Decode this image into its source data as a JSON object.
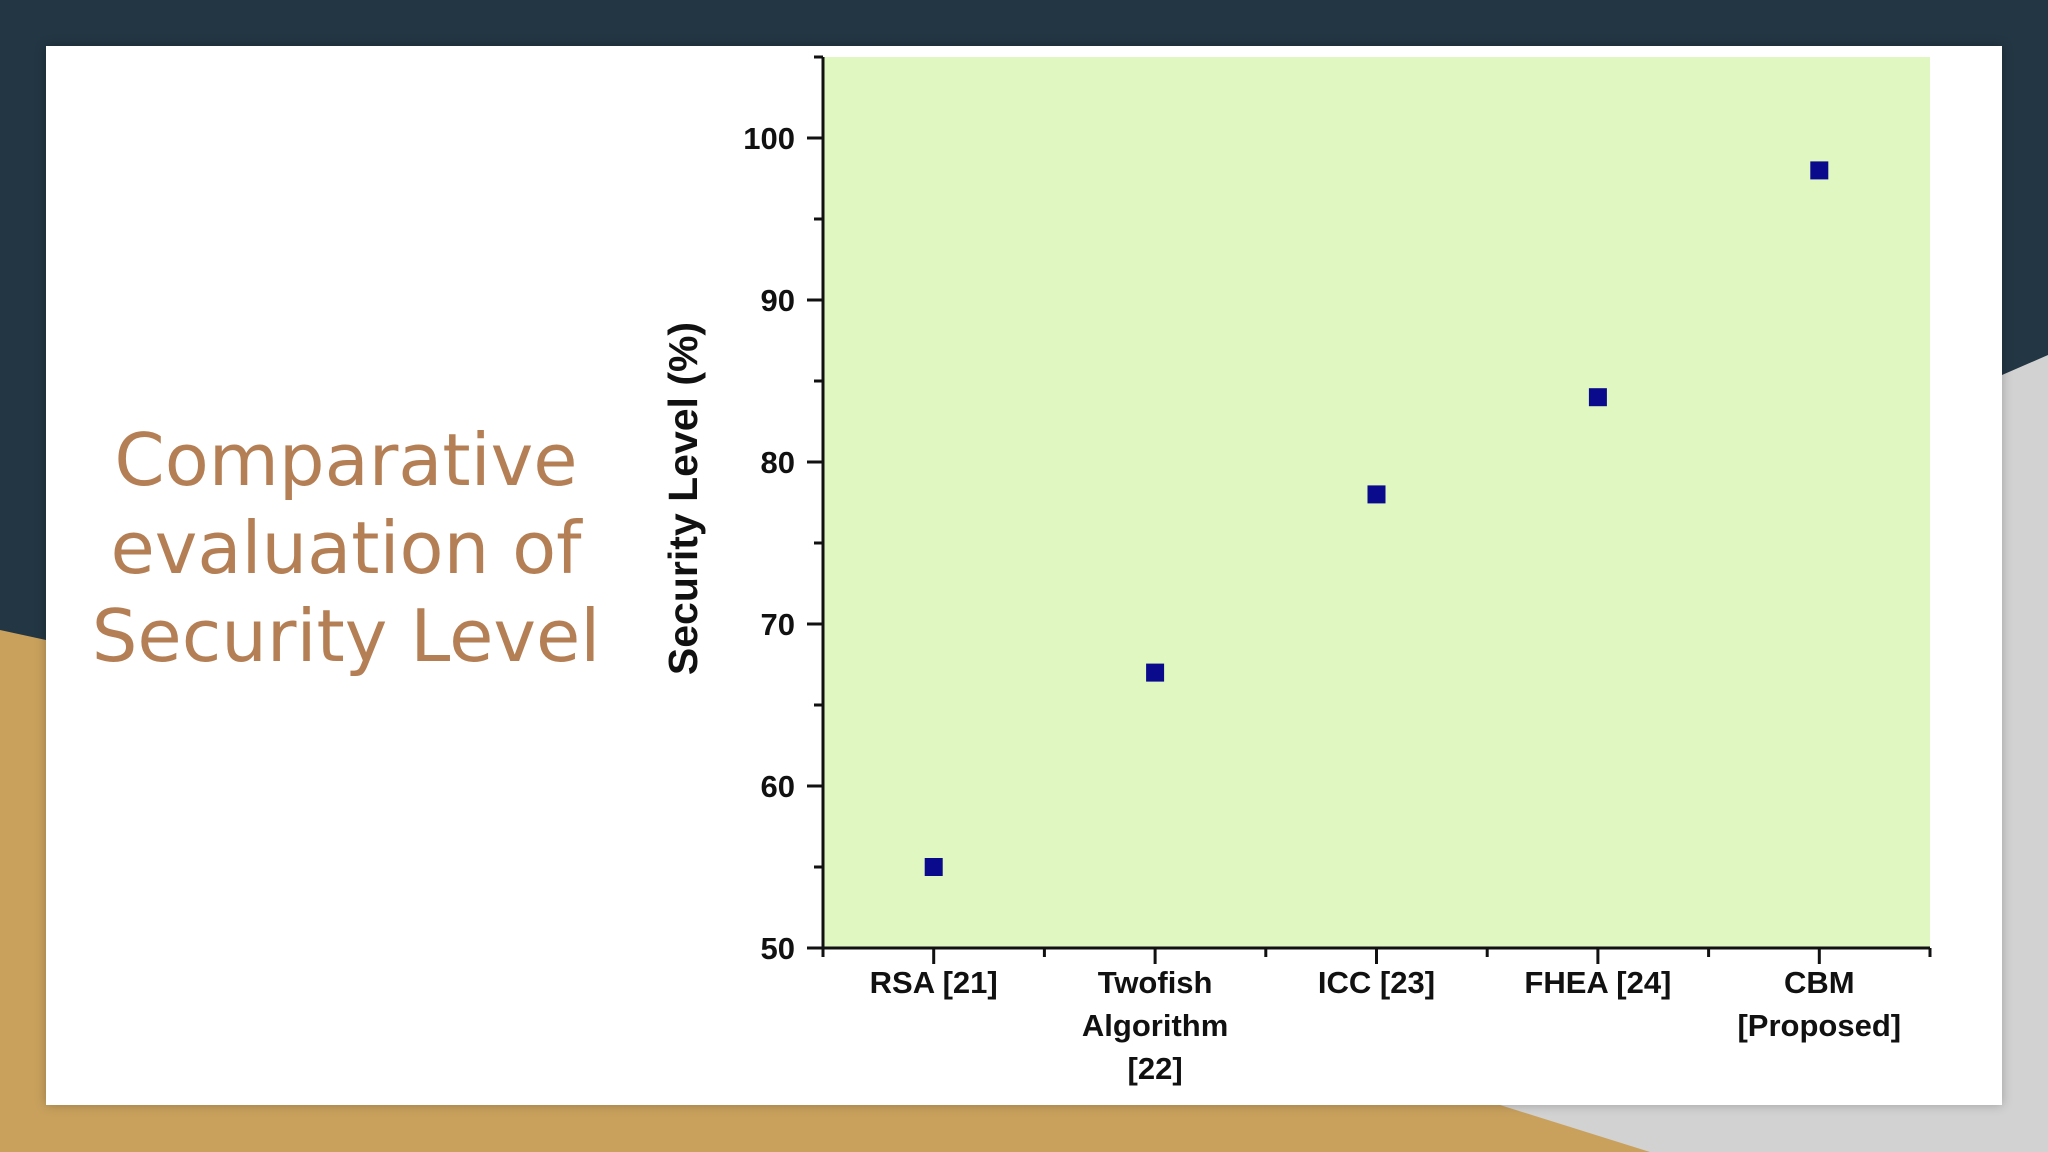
{
  "slide": {
    "title": "Comparative evaluation of Security Level"
  },
  "colors": {
    "background_dark": "#233643",
    "accent_gold": "#c9a15d",
    "accent_gray": "#cfcfcf",
    "title": "#b57f55",
    "plot_background": "#e0f7c2",
    "marker": "#0a0a8c"
  },
  "chart_data": {
    "type": "scatter",
    "title": "",
    "xlabel": "",
    "ylabel": "Security Level (%)",
    "categories": [
      [
        "RSA [21]"
      ],
      [
        "Twofish",
        "Algorithm",
        "[22]"
      ],
      [
        "ICC [23]"
      ],
      [
        "FHEA [24]"
      ],
      [
        "CBM",
        "[Proposed]"
      ]
    ],
    "values": [
      55,
      67,
      78,
      84,
      98
    ],
    "ylim": [
      50,
      105
    ],
    "yticks": [
      50,
      60,
      70,
      80,
      90,
      100
    ],
    "marker": "square",
    "grid": false,
    "legend": "none"
  }
}
